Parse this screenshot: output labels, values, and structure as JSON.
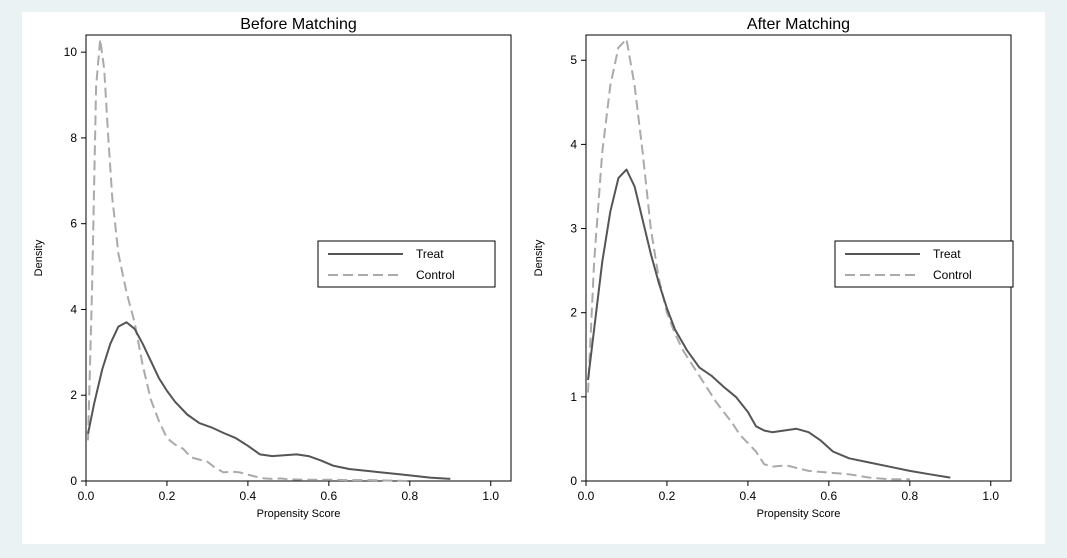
{
  "chart_data": [
    {
      "type": "line",
      "title": "Before Matching",
      "xlabel": "Propensity Score",
      "ylabel": "Density",
      "xlim": [
        0,
        1.05
      ],
      "ylim": [
        0,
        10.4
      ],
      "xticks": [
        0.0,
        0.2,
        0.4,
        0.6,
        0.8,
        1.0
      ],
      "xtick_labels": [
        "0.0",
        "0.2",
        "0.4",
        "0.6",
        "0.8",
        "1.0"
      ],
      "yticks": [
        0,
        2,
        4,
        6,
        8,
        10
      ],
      "ytick_labels": [
        "0",
        "2",
        "4",
        "6",
        "8",
        "10"
      ],
      "grid": false,
      "legend": "right",
      "series": [
        {
          "name": "Treat",
          "style": "solid",
          "color": "#555555",
          "x": [
            0.005,
            0.02,
            0.04,
            0.06,
            0.08,
            0.1,
            0.12,
            0.14,
            0.16,
            0.18,
            0.2,
            0.22,
            0.25,
            0.28,
            0.31,
            0.34,
            0.37,
            0.4,
            0.43,
            0.46,
            0.49,
            0.52,
            0.55,
            0.58,
            0.61,
            0.65,
            0.7,
            0.75,
            0.8,
            0.85,
            0.9
          ],
          "y": [
            1.1,
            1.8,
            2.6,
            3.2,
            3.6,
            3.7,
            3.55,
            3.2,
            2.8,
            2.4,
            2.1,
            1.85,
            1.55,
            1.35,
            1.25,
            1.12,
            1.0,
            0.82,
            0.62,
            0.58,
            0.6,
            0.62,
            0.58,
            0.48,
            0.36,
            0.28,
            0.23,
            0.18,
            0.13,
            0.08,
            0.05
          ]
        },
        {
          "name": "Control",
          "style": "dashed",
          "color": "#aaaaaa",
          "x": [
            0.005,
            0.015,
            0.025,
            0.035,
            0.045,
            0.055,
            0.065,
            0.08,
            0.1,
            0.12,
            0.14,
            0.16,
            0.18,
            0.2,
            0.22,
            0.24,
            0.26,
            0.28,
            0.3,
            0.32,
            0.34,
            0.36,
            0.38,
            0.4,
            0.42,
            0.44,
            0.46,
            0.48,
            0.5,
            0.55,
            0.6,
            0.65,
            0.7,
            0.75,
            0.8
          ],
          "y": [
            0.95,
            4.5,
            9.2,
            10.3,
            9.6,
            8.0,
            6.6,
            5.3,
            4.4,
            3.7,
            2.7,
            1.9,
            1.4,
            1.0,
            0.85,
            0.75,
            0.55,
            0.5,
            0.45,
            0.3,
            0.2,
            0.22,
            0.2,
            0.15,
            0.1,
            0.06,
            0.05,
            0.06,
            0.04,
            0.03,
            0.03,
            0.02,
            0.02,
            0.01,
            0.0
          ]
        }
      ]
    },
    {
      "type": "line",
      "title": "After Matching",
      "xlabel": "Propensity Score",
      "ylabel": "Density",
      "xlim": [
        0,
        1.05
      ],
      "ylim": [
        0,
        5.3
      ],
      "xticks": [
        0.0,
        0.2,
        0.4,
        0.6,
        0.8,
        1.0
      ],
      "xtick_labels": [
        "0.0",
        "0.2",
        "0.4",
        "0.6",
        "0.8",
        "1.0"
      ],
      "yticks": [
        0,
        1,
        2,
        3,
        4,
        5
      ],
      "ytick_labels": [
        "0",
        "1",
        "2",
        "3",
        "4",
        "5"
      ],
      "grid": false,
      "legend": "right",
      "series": [
        {
          "name": "Treat",
          "style": "solid",
          "color": "#555555",
          "x": [
            0.005,
            0.02,
            0.04,
            0.06,
            0.08,
            0.1,
            0.12,
            0.14,
            0.16,
            0.18,
            0.2,
            0.22,
            0.25,
            0.28,
            0.31,
            0.34,
            0.37,
            0.4,
            0.42,
            0.44,
            0.46,
            0.49,
            0.52,
            0.55,
            0.58,
            0.61,
            0.65,
            0.7,
            0.75,
            0.8,
            0.85,
            0.9
          ],
          "y": [
            1.2,
            1.8,
            2.6,
            3.2,
            3.6,
            3.7,
            3.5,
            3.1,
            2.7,
            2.35,
            2.05,
            1.8,
            1.55,
            1.35,
            1.25,
            1.12,
            1.0,
            0.82,
            0.65,
            0.6,
            0.58,
            0.6,
            0.62,
            0.58,
            0.48,
            0.35,
            0.27,
            0.22,
            0.17,
            0.12,
            0.08,
            0.04
          ]
        },
        {
          "name": "Control",
          "style": "dashed",
          "color": "#aaaaaa",
          "x": [
            0.005,
            0.02,
            0.04,
            0.06,
            0.08,
            0.1,
            0.12,
            0.14,
            0.16,
            0.18,
            0.2,
            0.22,
            0.24,
            0.26,
            0.28,
            0.3,
            0.32,
            0.34,
            0.36,
            0.38,
            0.4,
            0.42,
            0.44,
            0.46,
            0.48,
            0.5,
            0.55,
            0.6,
            0.65,
            0.7,
            0.75,
            0.8
          ],
          "y": [
            1.05,
            2.6,
            3.9,
            4.7,
            5.15,
            5.25,
            4.7,
            3.9,
            3.0,
            2.4,
            2.0,
            1.75,
            1.55,
            1.4,
            1.25,
            1.1,
            0.95,
            0.82,
            0.7,
            0.55,
            0.45,
            0.35,
            0.2,
            0.17,
            0.18,
            0.18,
            0.12,
            0.1,
            0.08,
            0.04,
            0.02,
            0.02
          ]
        }
      ]
    }
  ]
}
